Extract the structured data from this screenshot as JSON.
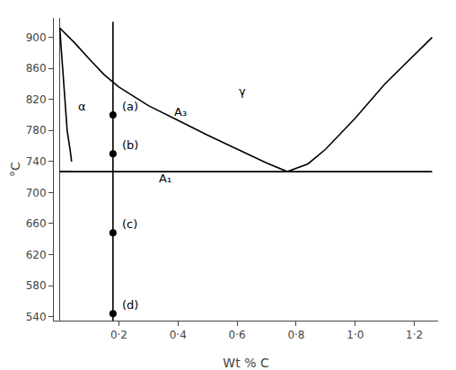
{
  "chart_data": {
    "type": "line",
    "xlabel": "Wt % C",
    "ylabel": "°C",
    "xlim": [
      -0.02,
      1.28
    ],
    "ylim": [
      535,
      925
    ],
    "xticks": [
      {
        "value": 0.2,
        "label": "0·2"
      },
      {
        "value": 0.4,
        "label": "0·4"
      },
      {
        "value": 0.6,
        "label": "0·6"
      },
      {
        "value": 0.8,
        "label": "0·8"
      },
      {
        "value": 1.0,
        "label": "1·0"
      },
      {
        "value": 1.2,
        "label": "1·2"
      }
    ],
    "yticks": [
      540,
      580,
      620,
      660,
      700,
      740,
      780,
      820,
      860,
      900
    ],
    "grid": false,
    "series": [
      {
        "type": "line",
        "color": "black",
        "x": [
          0.0,
          0.05,
          0.1,
          0.15,
          0.2,
          0.3,
          0.4,
          0.5,
          0.6,
          0.7,
          0.77,
          0.84,
          0.9,
          1.0,
          1.1,
          1.2,
          1.26
        ],
        "values": [
          912,
          893,
          872,
          852,
          836,
          812,
          793,
          774,
          756,
          738,
          727,
          737,
          756,
          796,
          840,
          878,
          900
        ]
      },
      {
        "type": "line",
        "color": "black",
        "x": [
          0.0,
          1.26
        ],
        "values": [
          727,
          727
        ]
      },
      {
        "type": "line",
        "color": "black",
        "x": [
          0.0,
          0.025,
          0.035,
          0.04
        ],
        "values": [
          912,
          780,
          755,
          740
        ]
      },
      {
        "type": "line",
        "color": "black",
        "x": [
          0.0,
          0.04
        ],
        "values": [
          727,
          727
        ]
      },
      {
        "type": "line",
        "color": "black",
        "x": [
          0.18,
          0.18
        ],
        "values": [
          535,
          920
        ]
      },
      {
        "type": "scatter",
        "marker": "circle",
        "color": "black",
        "x": [
          0.18,
          0.18,
          0.18,
          0.18
        ],
        "values": [
          800,
          750,
          648,
          544
        ]
      }
    ],
    "annotations": [
      {
        "x": 0.205,
        "y": 800,
        "text": "(a)"
      },
      {
        "x": 0.205,
        "y": 750,
        "text": "(b)"
      },
      {
        "x": 0.205,
        "y": 648,
        "text": "(c)"
      },
      {
        "x": 0.205,
        "y": 544,
        "text": "(d)"
      },
      {
        "x": 0.055,
        "y": 800,
        "text": "α"
      },
      {
        "x": 0.6,
        "y": 820,
        "text": "γ"
      },
      {
        "x": 0.38,
        "y": 793,
        "text": "A₃"
      },
      {
        "x": 0.33,
        "y": 708,
        "text": "A₁"
      }
    ]
  }
}
